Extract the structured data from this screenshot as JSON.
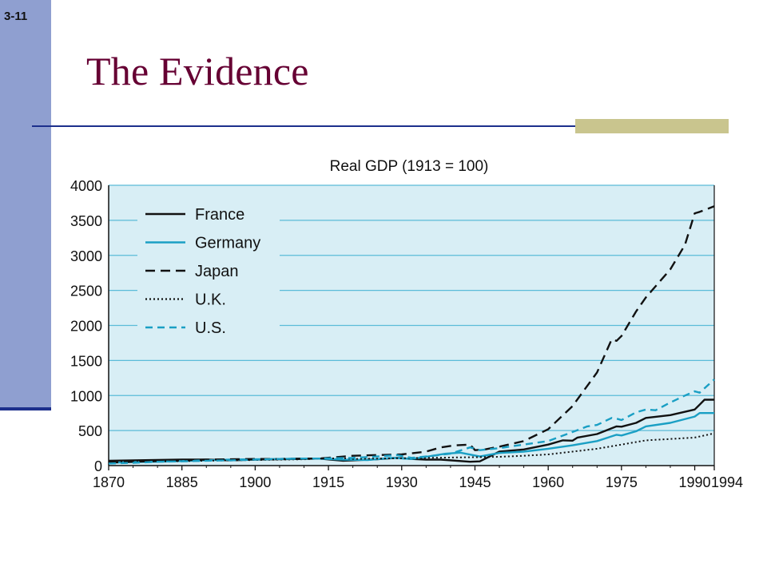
{
  "slide": {
    "number": "3-11",
    "title": "The Evidence"
  },
  "colors": {
    "sidebar": "#8f9fd0",
    "title": "#660033",
    "rule": "#1c2f8c",
    "accent": "#c9c58e",
    "plot_background": "#d8eef5",
    "gridline": "#5bbbd8"
  },
  "chart_data": {
    "type": "line",
    "title": "Real GDP (1913 = 100)",
    "xlabel": "",
    "ylabel": "",
    "xlim": [
      1870,
      1994
    ],
    "ylim": [
      0,
      4000
    ],
    "x_ticks": [
      1870,
      1885,
      1900,
      1915,
      1930,
      1945,
      1960,
      1975,
      1990,
      1994
    ],
    "y_ticks": [
      0,
      500,
      1000,
      1500,
      2000,
      2500,
      3000,
      3500,
      4000
    ],
    "grid": true,
    "legend_position": "top-left",
    "series": [
      {
        "name": "France",
        "color": "#111111",
        "dash": "solid",
        "points": [
          [
            1870,
            70
          ],
          [
            1875,
            75
          ],
          [
            1880,
            80
          ],
          [
            1885,
            85
          ],
          [
            1890,
            85
          ],
          [
            1895,
            75
          ],
          [
            1900,
            85
          ],
          [
            1905,
            90
          ],
          [
            1910,
            95
          ],
          [
            1913,
            100
          ],
          [
            1918,
            70
          ],
          [
            1920,
            75
          ],
          [
            1925,
            90
          ],
          [
            1929,
            110
          ],
          [
            1932,
            95
          ],
          [
            1935,
            85
          ],
          [
            1938,
            85
          ],
          [
            1944,
            55
          ],
          [
            1946,
            60
          ],
          [
            1950,
            200
          ],
          [
            1955,
            230
          ],
          [
            1960,
            300
          ],
          [
            1963,
            360
          ],
          [
            1965,
            355
          ],
          [
            1966,
            400
          ],
          [
            1970,
            450
          ],
          [
            1974,
            560
          ],
          [
            1975,
            555
          ],
          [
            1978,
            610
          ],
          [
            1980,
            680
          ],
          [
            1985,
            720
          ],
          [
            1990,
            800
          ],
          [
            1991,
            870
          ],
          [
            1992,
            940
          ],
          [
            1994,
            940
          ]
        ]
      },
      {
        "name": "Germany",
        "color": "#1a9fc4",
        "dash": "solid",
        "points": [
          [
            1870,
            40
          ],
          [
            1875,
            50
          ],
          [
            1880,
            55
          ],
          [
            1885,
            65
          ],
          [
            1890,
            75
          ],
          [
            1895,
            85
          ],
          [
            1900,
            90
          ],
          [
            1905,
            95
          ],
          [
            1910,
            100
          ],
          [
            1913,
            100
          ],
          [
            1918,
            85
          ],
          [
            1923,
            80
          ],
          [
            1928,
            110
          ],
          [
            1932,
            95
          ],
          [
            1935,
            125
          ],
          [
            1939,
            170
          ],
          [
            1942,
            185
          ],
          [
            1946,
            130
          ],
          [
            1950,
            180
          ],
          [
            1955,
            200
          ],
          [
            1960,
            240
          ],
          [
            1965,
            290
          ],
          [
            1970,
            350
          ],
          [
            1974,
            440
          ],
          [
            1975,
            430
          ],
          [
            1978,
            490
          ],
          [
            1980,
            560
          ],
          [
            1985,
            610
          ],
          [
            1990,
            700
          ],
          [
            1991,
            750
          ],
          [
            1994,
            750
          ]
        ]
      },
      {
        "name": "Japan",
        "color": "#111111",
        "dash": "long-dash",
        "points": [
          [
            1870,
            45
          ],
          [
            1875,
            55
          ],
          [
            1880,
            65
          ],
          [
            1885,
            75
          ],
          [
            1890,
            85
          ],
          [
            1895,
            90
          ],
          [
            1900,
            95
          ],
          [
            1905,
            95
          ],
          [
            1910,
            100
          ],
          [
            1913,
            100
          ],
          [
            1920,
            140
          ],
          [
            1925,
            150
          ],
          [
            1930,
            160
          ],
          [
            1935,
            200
          ],
          [
            1938,
            260
          ],
          [
            1941,
            290
          ],
          [
            1944,
            300
          ],
          [
            1945,
            220
          ],
          [
            1947,
            230
          ],
          [
            1950,
            270
          ],
          [
            1955,
            350
          ],
          [
            1960,
            520
          ],
          [
            1965,
            850
          ],
          [
            1970,
            1330
          ],
          [
            1973,
            1800
          ],
          [
            1974,
            1780
          ],
          [
            1975,
            1850
          ],
          [
            1978,
            2200
          ],
          [
            1980,
            2400
          ],
          [
            1985,
            2800
          ],
          [
            1988,
            3150
          ],
          [
            1990,
            3600
          ],
          [
            1991,
            3620
          ],
          [
            1994,
            3700
          ]
        ]
      },
      {
        "name": "U.K.",
        "color": "#111111",
        "dash": "dotted",
        "points": [
          [
            1870,
            50
          ],
          [
            1875,
            55
          ],
          [
            1880,
            60
          ],
          [
            1885,
            65
          ],
          [
            1890,
            70
          ],
          [
            1895,
            75
          ],
          [
            1900,
            80
          ],
          [
            1905,
            85
          ],
          [
            1910,
            90
          ],
          [
            1913,
            100
          ],
          [
            1918,
            105
          ],
          [
            1920,
            95
          ],
          [
            1925,
            100
          ],
          [
            1930,
            105
          ],
          [
            1935,
            110
          ],
          [
            1940,
            115
          ],
          [
            1945,
            120
          ],
          [
            1950,
            125
          ],
          [
            1955,
            140
          ],
          [
            1960,
            160
          ],
          [
            1965,
            200
          ],
          [
            1970,
            240
          ],
          [
            1975,
            300
          ],
          [
            1980,
            360
          ],
          [
            1985,
            380
          ],
          [
            1990,
            400
          ],
          [
            1994,
            460
          ]
        ]
      },
      {
        "name": "U.S.",
        "color": "#1a9fc4",
        "dash": "dashed",
        "points": [
          [
            1870,
            30
          ],
          [
            1875,
            40
          ],
          [
            1880,
            55
          ],
          [
            1885,
            60
          ],
          [
            1890,
            70
          ],
          [
            1895,
            75
          ],
          [
            1900,
            85
          ],
          [
            1905,
            95
          ],
          [
            1910,
            100
          ],
          [
            1913,
            100
          ],
          [
            1920,
            110
          ],
          [
            1925,
            130
          ],
          [
            1929,
            150
          ],
          [
            1932,
            110
          ],
          [
            1935,
            130
          ],
          [
            1940,
            170
          ],
          [
            1944,
            260
          ],
          [
            1946,
            220
          ],
          [
            1950,
            250
          ],
          [
            1955,
            300
          ],
          [
            1960,
            350
          ],
          [
            1965,
            480
          ],
          [
            1968,
            560
          ],
          [
            1970,
            580
          ],
          [
            1973,
            680
          ],
          [
            1974,
            670
          ],
          [
            1975,
            650
          ],
          [
            1978,
            760
          ],
          [
            1980,
            800
          ],
          [
            1982,
            790
          ],
          [
            1985,
            900
          ],
          [
            1988,
            1000
          ],
          [
            1990,
            1060
          ],
          [
            1991,
            1040
          ],
          [
            1994,
            1230
          ]
        ]
      }
    ]
  }
}
